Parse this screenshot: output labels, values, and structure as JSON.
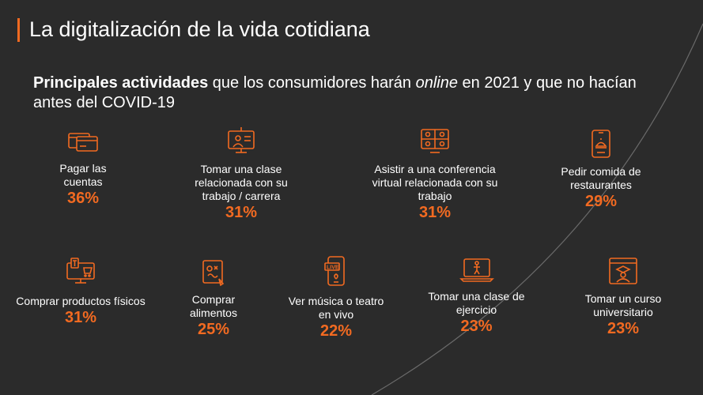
{
  "title": "La digitalización de la vida cotidiana",
  "subtitle": {
    "bold": "Principales actividades",
    "part1": " que los consumidores harán ",
    "italic": "online",
    "part2": " en 2021 y que no hacían antes del COVID-19"
  },
  "activities": [
    {
      "label": "Pagar las\ncuentas",
      "value": "36%",
      "icon": "credit-card-icon"
    },
    {
      "label": "Tomar una clase\nrelacionada con su\ntrabajo / carrera",
      "value": "31%",
      "icon": "online-class-icon"
    },
    {
      "label": "Asistir a una conferencia\nvirtual relacionada con su\ntrabajo",
      "value": "31%",
      "icon": "video-conference-icon"
    },
    {
      "label": "Pedir comida de\nrestaurantes",
      "value": "29%",
      "icon": "food-delivery-phone-icon"
    },
    {
      "label": "Comprar productos físicos",
      "value": "31%",
      "icon": "online-shopping-icon"
    },
    {
      "label": "Comprar\nalimentos",
      "value": "25%",
      "icon": "grocery-tablet-icon"
    },
    {
      "label": "Ver música o teatro\nen vivo",
      "value": "22%",
      "icon": "live-stream-phone-icon"
    },
    {
      "label": "Tomar una clase de\nejercicio",
      "value": "23%",
      "icon": "exercise-laptop-icon"
    },
    {
      "label": "Tomar un curso\nuniversitario",
      "value": "23%",
      "icon": "graduation-screen-icon"
    }
  ],
  "colors": {
    "accent": "#f26a21",
    "background": "#2b2b2b",
    "text": "#ffffff"
  }
}
